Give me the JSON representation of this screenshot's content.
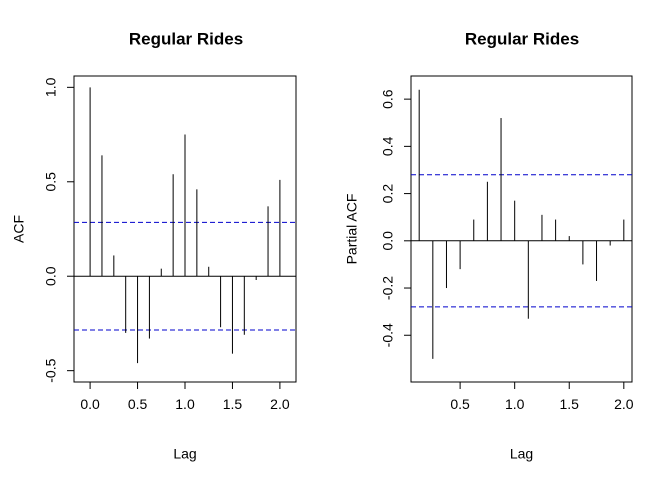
{
  "chart_data": [
    {
      "type": "bar",
      "title": "Regular Rides",
      "xlabel": "Lag",
      "ylabel": "ACF",
      "xlim": [
        -0.083,
        2.083
      ],
      "ylim": [
        -0.5,
        1.0
      ],
      "xticks": [
        0.0,
        0.5,
        1.0,
        1.5,
        2.0
      ],
      "xtick_labels": [
        "0.0",
        "0.5",
        "1.0",
        "1.5",
        "2.0"
      ],
      "yticks": [
        -0.5,
        0.0,
        0.5,
        1.0
      ],
      "ytick_labels": [
        "-0.5",
        "0.0",
        "0.5",
        "1.0"
      ],
      "confidence_bound": 0.285,
      "x": [
        0.0,
        0.125,
        0.25,
        0.375,
        0.5,
        0.625,
        0.75,
        0.875,
        1.0,
        1.125,
        1.25,
        1.375,
        1.5,
        1.625,
        1.75,
        1.875,
        2.0
      ],
      "values": [
        1.0,
        0.64,
        0.11,
        -0.3,
        -0.46,
        -0.33,
        0.04,
        0.54,
        0.75,
        0.46,
        0.05,
        -0.27,
        -0.41,
        -0.31,
        -0.02,
        0.37,
        0.51
      ]
    },
    {
      "type": "bar",
      "title": "Regular Rides",
      "xlabel": "Lag",
      "ylabel": "Partial ACF",
      "xlim": [
        0.125,
        2.0
      ],
      "ylim": [
        -0.55,
        0.65
      ],
      "xticks": [
        0.5,
        1.0,
        1.5,
        2.0
      ],
      "xtick_labels": [
        "0.5",
        "1.0",
        "1.5",
        "2.0"
      ],
      "yticks": [
        -0.4,
        -0.2,
        0.0,
        0.2,
        0.4,
        0.6
      ],
      "ytick_labels": [
        "-0.4",
        "-0.2",
        "0.0",
        "0.2",
        "0.4",
        "0.6"
      ],
      "confidence_bound": 0.28,
      "x": [
        0.125,
        0.25,
        0.375,
        0.5,
        0.625,
        0.75,
        0.875,
        1.0,
        1.125,
        1.25,
        1.375,
        1.5,
        1.625,
        1.75,
        1.875,
        2.0
      ],
      "values": [
        0.64,
        -0.5,
        -0.2,
        -0.12,
        0.09,
        0.25,
        0.52,
        0.17,
        -0.33,
        0.11,
        0.09,
        0.02,
        -0.1,
        -0.17,
        -0.02,
        0.09
      ]
    }
  ],
  "colors": {
    "bars": "#000000",
    "confidence_line": "#0000cc",
    "frame": "#000000"
  }
}
